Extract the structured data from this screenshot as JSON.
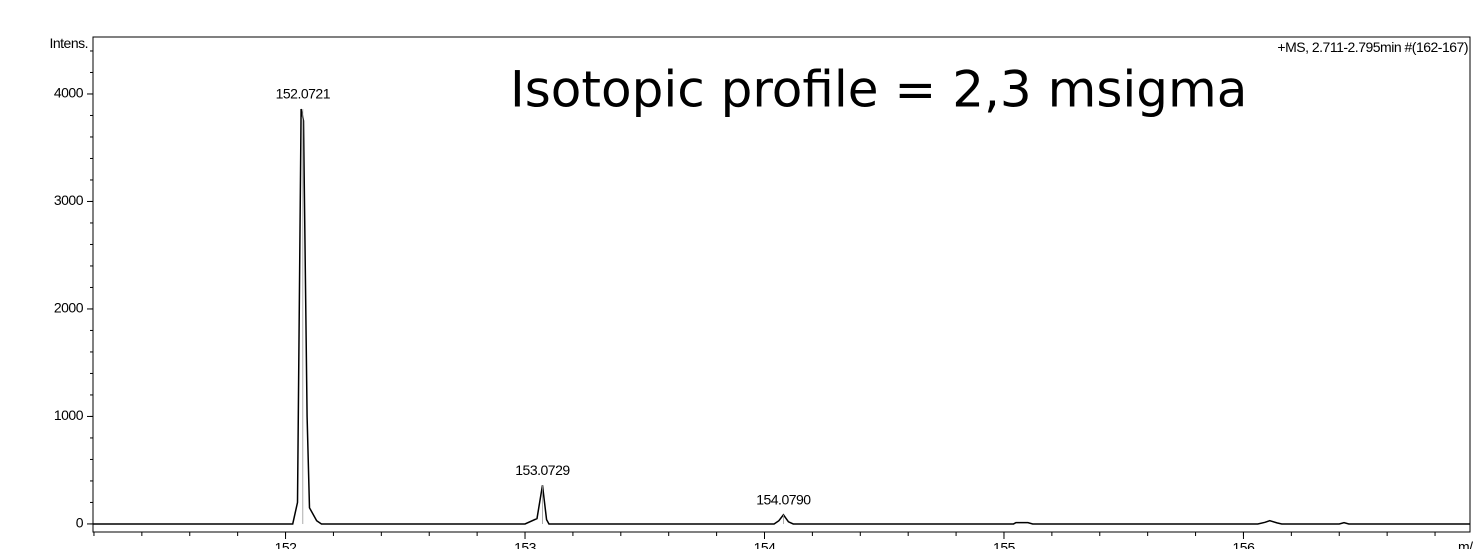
{
  "chart_data": {
    "type": "line",
    "title": "Isotopic profile = 2,3 msigma",
    "info": "+MS, 2.711-2.795min #(162-167)",
    "ylabel": "Intens.",
    "xlabel": "m/z",
    "xlim": [
      151.196,
      156.946
    ],
    "ylim": [
      -75,
      4530
    ],
    "xticks": [
      152,
      153,
      154,
      155,
      156
    ],
    "yticks": [
      0,
      1000,
      2000,
      3000,
      4000
    ],
    "series": [
      {
        "name": "+MS",
        "color": "#000000",
        "x": [
          151.196,
          152.03,
          152.05,
          152.065,
          152.075,
          152.09,
          152.1,
          152.13,
          152.15,
          153.0,
          153.05,
          153.0729,
          153.09,
          153.1,
          154.04,
          154.06,
          154.079,
          154.1,
          154.12,
          155.04,
          155.05,
          155.1,
          155.12,
          156.06,
          156.09,
          156.11,
          156.14,
          156.16,
          156.4,
          156.42,
          156.44,
          156.946
        ],
        "values": [
          0,
          0,
          200,
          3860,
          3750,
          1000,
          150,
          30,
          0,
          0,
          50,
          360,
          40,
          0,
          0,
          30,
          85,
          20,
          0,
          0,
          12,
          12,
          0,
          0,
          15,
          30,
          10,
          0,
          0,
          12,
          0,
          0
        ]
      }
    ],
    "annotations": [
      {
        "text": "152.0721",
        "x": 152.0721,
        "y": 3860
      },
      {
        "text": "153.0729",
        "x": 153.0729,
        "y": 360
      },
      {
        "text": "154.0790",
        "x": 154.079,
        "y": 85
      }
    ]
  }
}
